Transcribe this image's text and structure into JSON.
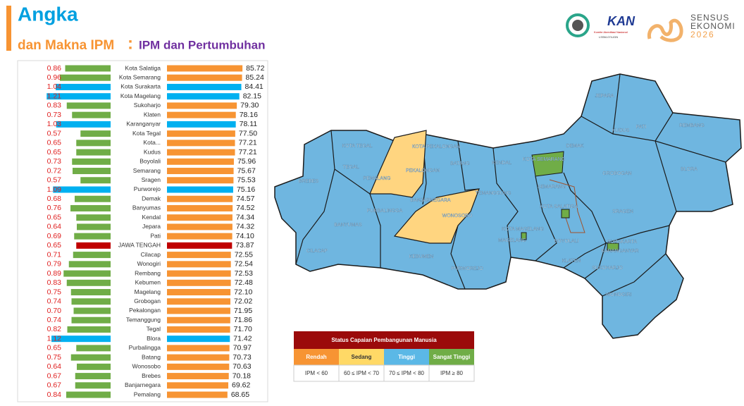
{
  "header": {
    "title": "Angka",
    "subtitle": "dan Makna IPM",
    "separator": ":",
    "section": "IPM dan Pertumbuhan",
    "logos": [
      "KAN",
      "Komite Akreditasi Nasional",
      "LSSM-074-IDN",
      "SENSUS",
      "EKONOMI",
      "2026"
    ]
  },
  "chart_data": [
    {
      "type": "hbar-left",
      "values": [
        0.86,
        0.96,
        1.04,
        1.21,
        0.83,
        0.73,
        1.03,
        0.57,
        0.65,
        0.65,
        0.73,
        0.72,
        0.57,
        1.09,
        0.68,
        0.76,
        0.65,
        0.64,
        0.69,
        0.65,
        0.71,
        0.79,
        0.89,
        0.83,
        0.75,
        0.74,
        0.7,
        0.74,
        0.82,
        1.12,
        0.65,
        0.75,
        0.64,
        0.67,
        0.67,
        0.84
      ],
      "value_labels": [
        "0.86",
        "0.96",
        "1.04",
        "1.21",
        "0.83",
        "0.73",
        "1.03",
        "0.57",
        "0.65",
        "0.65",
        "0.73",
        "0.72",
        "0.57",
        "1.09",
        "0.68",
        "0.76",
        "0.65",
        "0.64",
        "0.69",
        "0.65",
        "0.71",
        "0.79",
        "0.89",
        "0.83",
        "0.75",
        "0.74",
        "0.70",
        "0.74",
        "0.82",
        "1.12",
        "0.65",
        "0.75",
        "0.64",
        "0.67",
        "0.67",
        "0.84"
      ],
      "colors": [
        "#70ad47",
        "#70ad47",
        "#00b0f0",
        "#00b0f0",
        "#70ad47",
        "#70ad47",
        "#00b0f0",
        "#70ad47",
        "#70ad47",
        "#70ad47",
        "#70ad47",
        "#70ad47",
        "#70ad47",
        "#00b0f0",
        "#70ad47",
        "#70ad47",
        "#70ad47",
        "#70ad47",
        "#70ad47",
        "#c00000",
        "#70ad47",
        "#70ad47",
        "#70ad47",
        "#70ad47",
        "#70ad47",
        "#70ad47",
        "#70ad47",
        "#70ad47",
        "#70ad47",
        "#00b0f0",
        "#70ad47",
        "#70ad47",
        "#70ad47",
        "#70ad47",
        "#70ad47",
        "#70ad47"
      ],
      "label_color": "#e02020",
      "xlim": [
        0,
        1.6
      ]
    },
    {
      "type": "hbar",
      "categories": [
        "Kota Salatiga",
        "Kota Semarang",
        "Kota Surakarta",
        "Kota Magelang",
        "Sukoharjo",
        "Klaten",
        "Karanganyar",
        "Kota Tegal",
        "Kota...",
        "Kudus",
        "Boyolali",
        "Semarang",
        "Sragen",
        "Purworejo",
        "Demak",
        "Banyumas",
        "Kendal",
        "Jepara",
        "Pati",
        "JAWA TENGAH",
        "Cilacap",
        "Wonogiri",
        "Rembang",
        "Kebumen",
        "Magelang",
        "Grobogan",
        "Pekalongan",
        "Temanggung",
        "Tegal",
        "Blora",
        "Purbalingga",
        "Batang",
        "Wonosobo",
        "Brebes",
        "Banjarnegara",
        "Pemalang"
      ],
      "values": [
        85.72,
        85.24,
        84.41,
        82.15,
        79.3,
        78.16,
        78.11,
        77.5,
        77.21,
        77.21,
        75.96,
        75.67,
        75.53,
        75.16,
        74.57,
        74.52,
        74.34,
        74.32,
        74.1,
        73.87,
        72.55,
        72.54,
        72.53,
        72.48,
        72.1,
        72.02,
        71.95,
        71.86,
        71.7,
        71.42,
        70.97,
        70.73,
        70.63,
        70.18,
        69.62,
        68.65
      ],
      "value_labels": [
        "85.72",
        "85.24",
        "84.41",
        "82.15",
        "79.30",
        "78.16",
        "78.11",
        "77.50",
        "77.21",
        "77.21",
        "75.96",
        "75.67",
        "75.53",
        "75.16",
        "74.57",
        "74.52",
        "74.34",
        "74.32",
        "74.10",
        "73.87",
        "72.55",
        "72.54",
        "72.53",
        "72.48",
        "72.10",
        "72.02",
        "71.95",
        "71.86",
        "71.70",
        "71.42",
        "70.97",
        "70.73",
        "70.63",
        "70.18",
        "69.62",
        "68.65"
      ],
      "colors": [
        "#f79433",
        "#f79433",
        "#00b0f0",
        "#00b0f0",
        "#f79433",
        "#f79433",
        "#00b0f0",
        "#f79433",
        "#f79433",
        "#f79433",
        "#f79433",
        "#f79433",
        "#f79433",
        "#00b0f0",
        "#f79433",
        "#f79433",
        "#f79433",
        "#f79433",
        "#f79433",
        "#c00000",
        "#f79433",
        "#f79433",
        "#f79433",
        "#f79433",
        "#f79433",
        "#f79433",
        "#f79433",
        "#f79433",
        "#f79433",
        "#00b0f0",
        "#f79433",
        "#f79433",
        "#f79433",
        "#f79433",
        "#f79433",
        "#f79433"
      ],
      "label_color": "#222222",
      "xlim": [
        0,
        88
      ]
    }
  ],
  "map": {
    "labels": [
      "JEPARA",
      "KUDUS",
      "PATI",
      "REMBANG",
      "BLORA",
      "GROBOGAN",
      "DEMAK",
      "KOTA SEMARANG",
      "SEMARANG",
      "KOTA SALATIGA",
      "SRAGEN",
      "KOTA TEGAL",
      "KOTA PEKALONGAN",
      "TEGAL",
      "PEMALANG",
      "PEKALONGAN",
      "BATANG",
      "KENDAL",
      "BREBES",
      "TEMANGGUNG",
      "BANJARNEGARA",
      "WONOSOBO",
      "PURBALINGGA",
      "BANYUMAS",
      "CILACAP",
      "KEBUMEN",
      "PURWOREJO",
      "KOTA MAGELANG",
      "MAGELANG",
      "BOYOLALI",
      "SURAKARTA",
      "KARANGANYAR",
      "KLATEN",
      "SUKOHARJO",
      "WONOGIRI"
    ]
  },
  "legend": {
    "title": "Status Capaian Pembangunan Manusia",
    "headers": [
      "Rendah",
      "Sedang",
      "Tinggi",
      "Sangat Tinggi"
    ],
    "colors": [
      "#f79433",
      "#ffd966",
      "#5bb8e6",
      "#70ad47"
    ],
    "ranges": [
      "IPM < 60",
      "60 ≤ IPM < 70",
      "70 ≤ IPM < 80",
      "IPM ≥ 80"
    ]
  }
}
